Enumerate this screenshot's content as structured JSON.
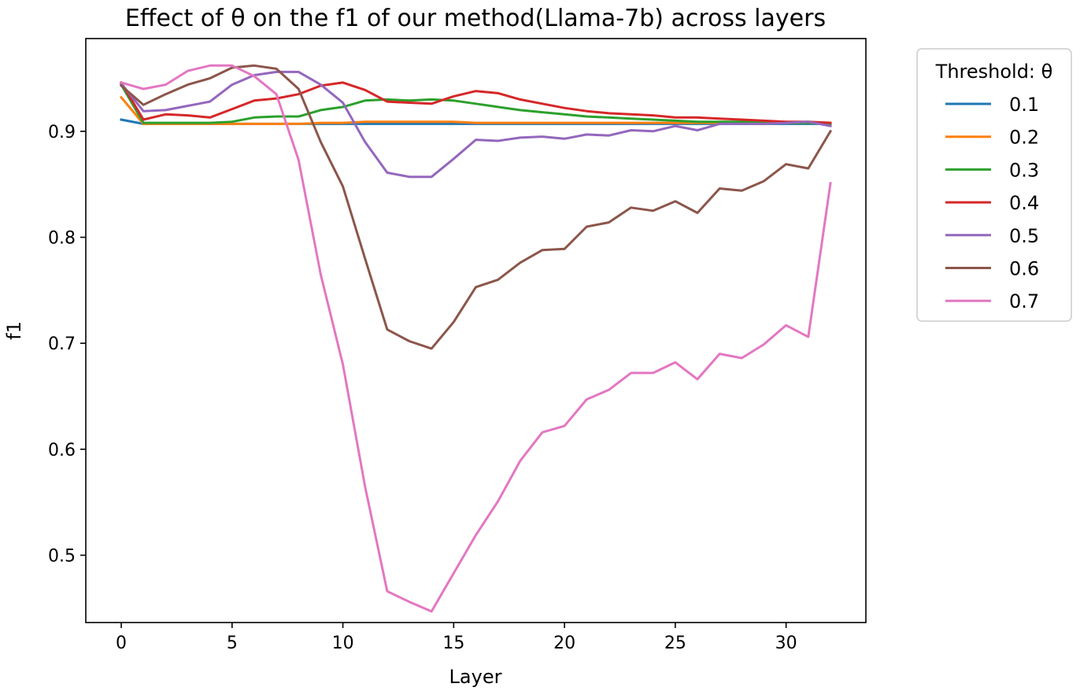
{
  "chart_data": {
    "type": "line",
    "title": "Effect of θ on the f1 of our method(Llama-7b) across layers",
    "xlabel": "Layer",
    "ylabel": "f1",
    "xlim": [
      -1.6,
      33.6
    ],
    "ylim": [
      0.4365,
      0.9875
    ],
    "xticks": [
      0,
      5,
      10,
      15,
      20,
      25,
      30
    ],
    "yticks": [
      0.5,
      0.6,
      0.7,
      0.8,
      0.9
    ],
    "ytick_labels": [
      "0.5",
      "0.6",
      "0.7",
      "0.8",
      "0.9"
    ],
    "grid": false,
    "legend": {
      "title": "Threshold: θ",
      "placement": "outside-right-top"
    },
    "x": [
      0,
      1,
      2,
      3,
      4,
      5,
      6,
      7,
      8,
      9,
      10,
      11,
      12,
      13,
      14,
      15,
      16,
      17,
      18,
      19,
      20,
      21,
      22,
      23,
      24,
      25,
      26,
      27,
      28,
      29,
      30,
      31,
      32
    ],
    "series": [
      {
        "name": "0.1",
        "color": "#1f77b4",
        "values": [
          0.911,
          0.907,
          0.907,
          0.907,
          0.907,
          0.907,
          0.907,
          0.907,
          0.907,
          0.907,
          0.907,
          0.907,
          0.907,
          0.907,
          0.907,
          0.907,
          0.907,
          0.907,
          0.907,
          0.907,
          0.907,
          0.907,
          0.907,
          0.907,
          0.907,
          0.907,
          0.907,
          0.907,
          0.907,
          0.907,
          0.907,
          0.907,
          0.907
        ]
      },
      {
        "name": "0.2",
        "color": "#ff7f0e",
        "values": [
          0.932,
          0.907,
          0.907,
          0.907,
          0.907,
          0.907,
          0.907,
          0.907,
          0.907,
          0.908,
          0.908,
          0.909,
          0.909,
          0.909,
          0.909,
          0.909,
          0.908,
          0.908,
          0.908,
          0.908,
          0.908,
          0.908,
          0.908,
          0.908,
          0.908,
          0.908,
          0.908,
          0.908,
          0.908,
          0.908,
          0.908,
          0.908,
          0.907
        ]
      },
      {
        "name": "0.3",
        "color": "#2ca02c",
        "values": [
          0.944,
          0.908,
          0.908,
          0.908,
          0.908,
          0.909,
          0.913,
          0.914,
          0.914,
          0.92,
          0.923,
          0.929,
          0.93,
          0.929,
          0.93,
          0.929,
          0.926,
          0.923,
          0.92,
          0.918,
          0.916,
          0.914,
          0.913,
          0.912,
          0.911,
          0.91,
          0.909,
          0.909,
          0.909,
          0.909,
          0.908,
          0.908,
          0.907
        ]
      },
      {
        "name": "0.4",
        "color": "#d62728",
        "values": [
          0.946,
          0.911,
          0.916,
          0.915,
          0.913,
          0.921,
          0.929,
          0.931,
          0.935,
          0.943,
          0.946,
          0.939,
          0.928,
          0.927,
          0.926,
          0.933,
          0.938,
          0.936,
          0.93,
          0.926,
          0.922,
          0.919,
          0.917,
          0.916,
          0.915,
          0.913,
          0.913,
          0.912,
          0.911,
          0.91,
          0.909,
          0.909,
          0.908
        ]
      },
      {
        "name": "0.5",
        "color": "#9467bd",
        "values": [
          0.945,
          0.919,
          0.92,
          0.924,
          0.928,
          0.944,
          0.953,
          0.956,
          0.956,
          0.944,
          0.927,
          0.89,
          0.861,
          0.857,
          0.857,
          0.874,
          0.892,
          0.891,
          0.894,
          0.895,
          0.893,
          0.897,
          0.896,
          0.901,
          0.9,
          0.905,
          0.901,
          0.907,
          0.907,
          0.907,
          0.908,
          0.909,
          0.905
        ]
      },
      {
        "name": "0.6",
        "color": "#8c564b",
        "values": [
          0.943,
          0.925,
          0.935,
          0.944,
          0.95,
          0.96,
          0.962,
          0.959,
          0.94,
          0.89,
          0.848,
          0.78,
          0.713,
          0.702,
          0.695,
          0.72,
          0.753,
          0.76,
          0.776,
          0.788,
          0.789,
          0.81,
          0.814,
          0.828,
          0.825,
          0.834,
          0.823,
          0.846,
          0.844,
          0.853,
          0.869,
          0.865,
          0.9
        ]
      },
      {
        "name": "0.7",
        "color": "#e377c2",
        "values": [
          0.946,
          0.94,
          0.944,
          0.957,
          0.962,
          0.962,
          0.952,
          0.935,
          0.873,
          0.765,
          0.68,
          0.565,
          0.466,
          0.456,
          0.447,
          0.483,
          0.519,
          0.551,
          0.589,
          0.616,
          0.622,
          0.647,
          0.656,
          0.672,
          0.672,
          0.682,
          0.666,
          0.69,
          0.686,
          0.699,
          0.717,
          0.706,
          0.851
        ]
      }
    ]
  }
}
